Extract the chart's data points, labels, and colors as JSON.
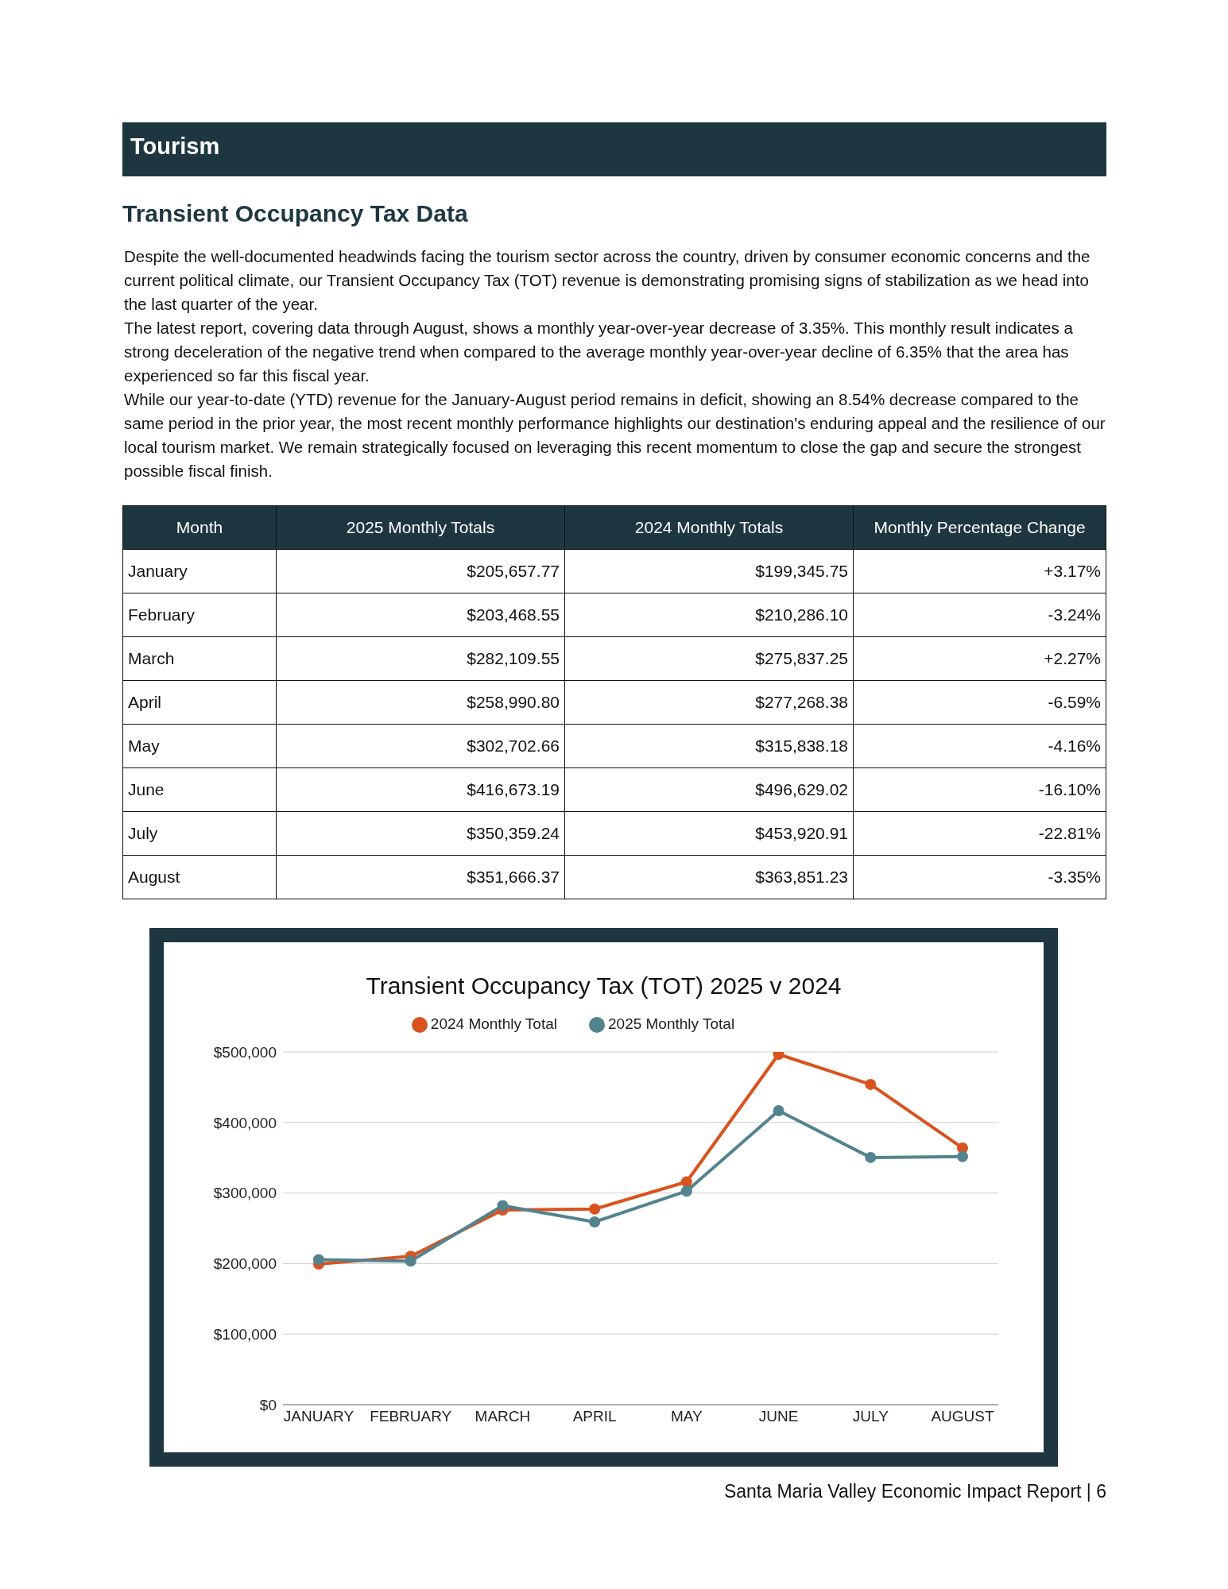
{
  "chart_data": {
    "type": "line",
    "title": "Transient Occupancy Tax (TOT) 2025 v 2024",
    "categories": [
      "JANUARY",
      "FEBRUARY",
      "MARCH",
      "APRIL",
      "MAY",
      "JUNE",
      "JULY",
      "AUGUST"
    ],
    "series": [
      {
        "name": "2024 Monthly Total",
        "color": "#d9531e",
        "values": [
          199345.75,
          210286.1,
          275837.25,
          277268.38,
          315838.18,
          496629.02,
          453920.91,
          363851.23
        ]
      },
      {
        "name": "2025 Monthly Total",
        "color": "#53838f",
        "values": [
          205657.77,
          203468.55,
          282109.55,
          258990.8,
          302702.66,
          416673.19,
          350359.24,
          351666.37
        ]
      }
    ],
    "ylim": [
      0,
      500000
    ],
    "yticks": [
      {
        "value": 0,
        "label": "$0"
      },
      {
        "value": 100000,
        "label": "$100,000"
      },
      {
        "value": 200000,
        "label": "$200,000"
      },
      {
        "value": 300000,
        "label": "$300,000"
      },
      {
        "value": 400000,
        "label": "$400,000"
      },
      {
        "value": 500000,
        "label": "$500,000"
      }
    ],
    "grid": "y",
    "legend": "top",
    "marker": "circle",
    "line_style": "solid",
    "annotations": [
      "Tourism",
      "Transient Occupancy Tax Data",
      "Despite the well-documented headwinds facing the tourism sector across the country, driven by consumer economic concerns and the current political climate, our Transient Occupancy Tax (TOT) revenue is demonstrating promising signs of stabilization as we head into the last quarter of the year.",
      "The latest report, covering data through August, shows a monthly year-over-year decrease of 3.35%. This monthly result indicates a strong deceleration of the negative trend when compared to the average monthly year-over-year decline of 6.35% that the area has experienced so far this fiscal year.",
      "While our year-to-date (YTD) revenue for the January-August period remains in deficit, showing an 8.54% decrease compared to the same period in the prior year, the most recent monthly performance highlights our destination's enduring appeal and the resilience of our local tourism market. We remain strategically focused on leveraging this recent momentum to close the gap and secure the strongest possible fiscal finish.",
      "Month",
      "2025 Monthly Totals",
      "2024 Monthly Totals",
      "Monthly Percentage Change",
      "January",
      "$205,657.77",
      "$199,345.75",
      "+3.17%",
      "February",
      "$203,468.55",
      "$210,286.10",
      "-3.24%",
      "March",
      "$282,109.55",
      "$275,837.25",
      "+2.27%",
      "April",
      "$258,990.80",
      "$277,268.38",
      "-6.59%",
      "May",
      "$302,702.66",
      "$315,838.18",
      "-4.16%",
      "June",
      "$416,673.19",
      "$496,629.02",
      "-16.10%",
      "July",
      "$350,359.24",
      "$453,920.91",
      "-22.81%",
      "August",
      "$351,666.37",
      "$363,851.23",
      "-3.35%",
      "Santa Maria Valley Economic Impact Report | 6"
    ]
  }
}
